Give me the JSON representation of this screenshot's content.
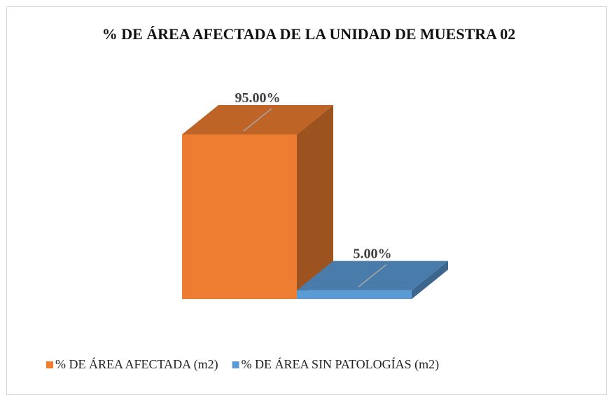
{
  "chart_data": {
    "type": "bar",
    "title": "% DE ÁREA AFECTADA DE LA UNIDAD DE MUESTRA 02",
    "series": [
      {
        "name": "% DE ÁREA AFECTADA (m2)",
        "color": "#ED7D31",
        "values": [
          95
        ],
        "value_labels": [
          "95.00%"
        ]
      },
      {
        "name": "% DE ÁREA SIN PATOLOGÍAS (m2)",
        "color": "#5B9BD5",
        "values": [
          5
        ],
        "value_labels": [
          "5.00%"
        ]
      }
    ],
    "legend": "bottom"
  }
}
